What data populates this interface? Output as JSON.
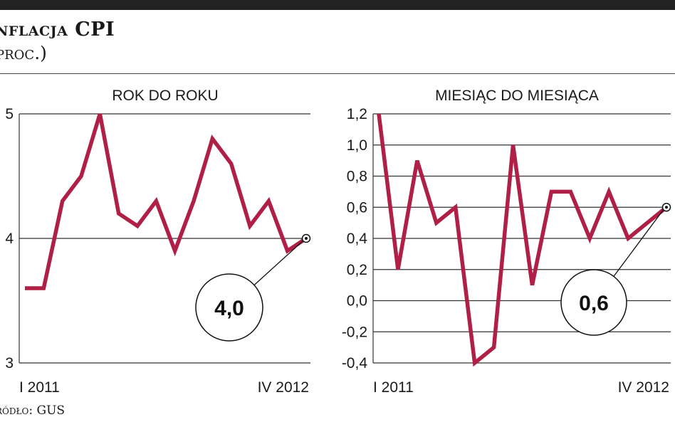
{
  "header": {
    "title": "nflacja CPI",
    "subtitle": "proc.)"
  },
  "footer": {
    "source": "ródło: GUS"
  },
  "colors": {
    "line": "#b01f45",
    "grid": "#333333",
    "text": "#1a1a1a"
  },
  "chart_data": [
    {
      "type": "line",
      "title": "ROK DO ROKU",
      "x_tick_labels": [
        "I 2011",
        "IV 2012"
      ],
      "yticks": [
        "5",
        "4",
        "3"
      ],
      "ylim": [
        3,
        5
      ],
      "values": [
        3.6,
        3.6,
        4.3,
        4.5,
        5.0,
        4.2,
        4.1,
        4.3,
        3.9,
        4.3,
        4.8,
        4.6,
        4.1,
        4.3,
        3.9,
        4.0
      ],
      "callout": "4,0",
      "grid": "horizontal"
    },
    {
      "type": "line",
      "title": "MIESIĄC DO MIESIĄCA",
      "x_tick_labels": [
        "I 2011",
        "IV 2012"
      ],
      "yticks": [
        "1,2",
        "1,0",
        "0,8",
        "0,6",
        "0,4",
        "0,2",
        "0,0",
        "-0,2",
        "-0,4"
      ],
      "ylim": [
        -0.4,
        1.2
      ],
      "values": [
        1.2,
        0.2,
        0.9,
        0.5,
        0.6,
        -0.4,
        -0.3,
        1.0,
        0.1,
        0.7,
        0.7,
        0.4,
        0.7,
        0.4,
        0.5,
        0.6
      ],
      "callout": "0,6",
      "grid": "horizontal"
    }
  ]
}
